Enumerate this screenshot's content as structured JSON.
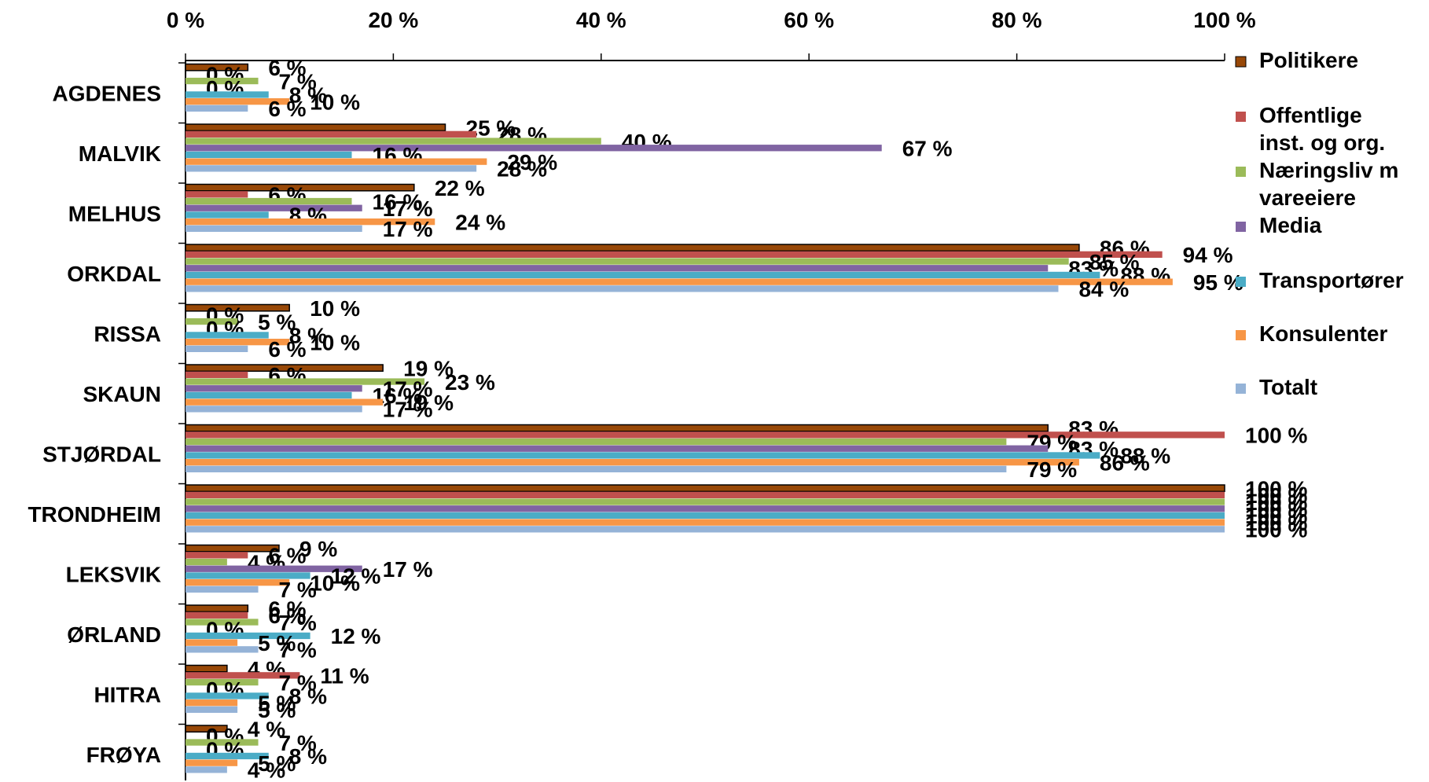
{
  "chart_data": {
    "type": "bar",
    "orientation": "horizontal",
    "title": "",
    "xlabel": "",
    "ylabel": "",
    "xlim": [
      0,
      100
    ],
    "x_ticks": [
      "0 %",
      "20 %",
      "40 %",
      "60 %",
      "80 %",
      "100 %"
    ],
    "x_axis_position": "top",
    "grid": false,
    "legend_position": "right",
    "categories": [
      "AGDENES",
      "MALVIK",
      "MELHUS",
      "ORKDAL",
      "RISSA",
      "SKAUN",
      "STJØRDAL",
      "TRONDHEIM",
      "LEKSVIK",
      "ØRLAND",
      "HITRA",
      "FRØYA"
    ],
    "series": [
      {
        "name": "Politikere",
        "color": "#984807",
        "values": [
          6,
          25,
          22,
          86,
          10,
          19,
          83,
          100,
          9,
          6,
          4,
          4
        ]
      },
      {
        "name": "Offentlige inst. og org.",
        "color": "#C0504D",
        "values": [
          0,
          28,
          6,
          94,
          0,
          6,
          100,
          100,
          6,
          6,
          11,
          0
        ]
      },
      {
        "name": "Næringsliv m vareeiere",
        "color": "#9BBB59",
        "values": [
          7,
          40,
          16,
          85,
          5,
          23,
          79,
          100,
          4,
          7,
          7,
          7
        ]
      },
      {
        "name": "Media",
        "color": "#8064A2",
        "values": [
          0,
          67,
          17,
          83,
          0,
          17,
          83,
          100,
          17,
          0,
          0,
          0
        ]
      },
      {
        "name": "Transportører",
        "color": "#4BACC6",
        "values": [
          8,
          16,
          8,
          88,
          8,
          16,
          88,
          100,
          12,
          12,
          8,
          8
        ]
      },
      {
        "name": "Konsulenter",
        "color": "#F79646",
        "values": [
          10,
          29,
          24,
          95,
          10,
          19,
          86,
          100,
          10,
          5,
          5,
          5
        ]
      },
      {
        "name": "Totalt",
        "color": "#95B3D7",
        "values": [
          6,
          28,
          17,
          84,
          6,
          17,
          79,
          100,
          7,
          7,
          5,
          4
        ]
      }
    ],
    "data_labels": [
      [
        "6 %",
        "0 %",
        "7 %",
        "0 %",
        "8 %",
        "10 %",
        "6 %"
      ],
      [
        "25 %",
        "28 %",
        "40 %",
        "67 %",
        "16 %",
        "29 %",
        "28 %"
      ],
      [
        "22 %",
        "6 %",
        "16 %",
        "17 %",
        "8 %",
        "24 %",
        "17 %"
      ],
      [
        "86 %",
        "94 %",
        "85 %",
        "83 %",
        "88 %",
        "95 %",
        "84 %"
      ],
      [
        "10 %",
        "0 %",
        "5 %",
        "0 %",
        "8 %",
        "10 %",
        "6 %"
      ],
      [
        "19 %",
        "6 %",
        "23 %",
        "17 %",
        "16 %",
        "19 %",
        "17 %"
      ],
      [
        "83 %",
        "100 %",
        "79 %",
        "83 %",
        "88 %",
        "86 %",
        "79 %"
      ],
      [
        "100 %",
        "100 %",
        "100 %",
        "100 %",
        "100 %",
        "100 %",
        "100 %"
      ],
      [
        "9 %",
        "6 %",
        "4 %",
        "17 %",
        "12 %",
        "10 %",
        "7 %"
      ],
      [
        "6 %",
        "6 %",
        "7 %",
        "0 %",
        "12 %",
        "5 %",
        "7 %"
      ],
      [
        "4 %",
        "11 %",
        "7 %",
        "0 %",
        "8 %",
        "5 %",
        "5 %"
      ],
      [
        "4 %",
        "0 %",
        "7 %",
        "0 %",
        "8 %",
        "5 %",
        "4 %"
      ]
    ],
    "legend_lines": [
      [
        "Politikere"
      ],
      [
        "Offentlige",
        "inst. og org."
      ],
      [
        "Næringsliv m",
        "vareeiere"
      ],
      [
        "Media"
      ],
      [
        "Transportører"
      ],
      [
        "Konsulenter"
      ],
      [
        "Totalt"
      ]
    ]
  }
}
